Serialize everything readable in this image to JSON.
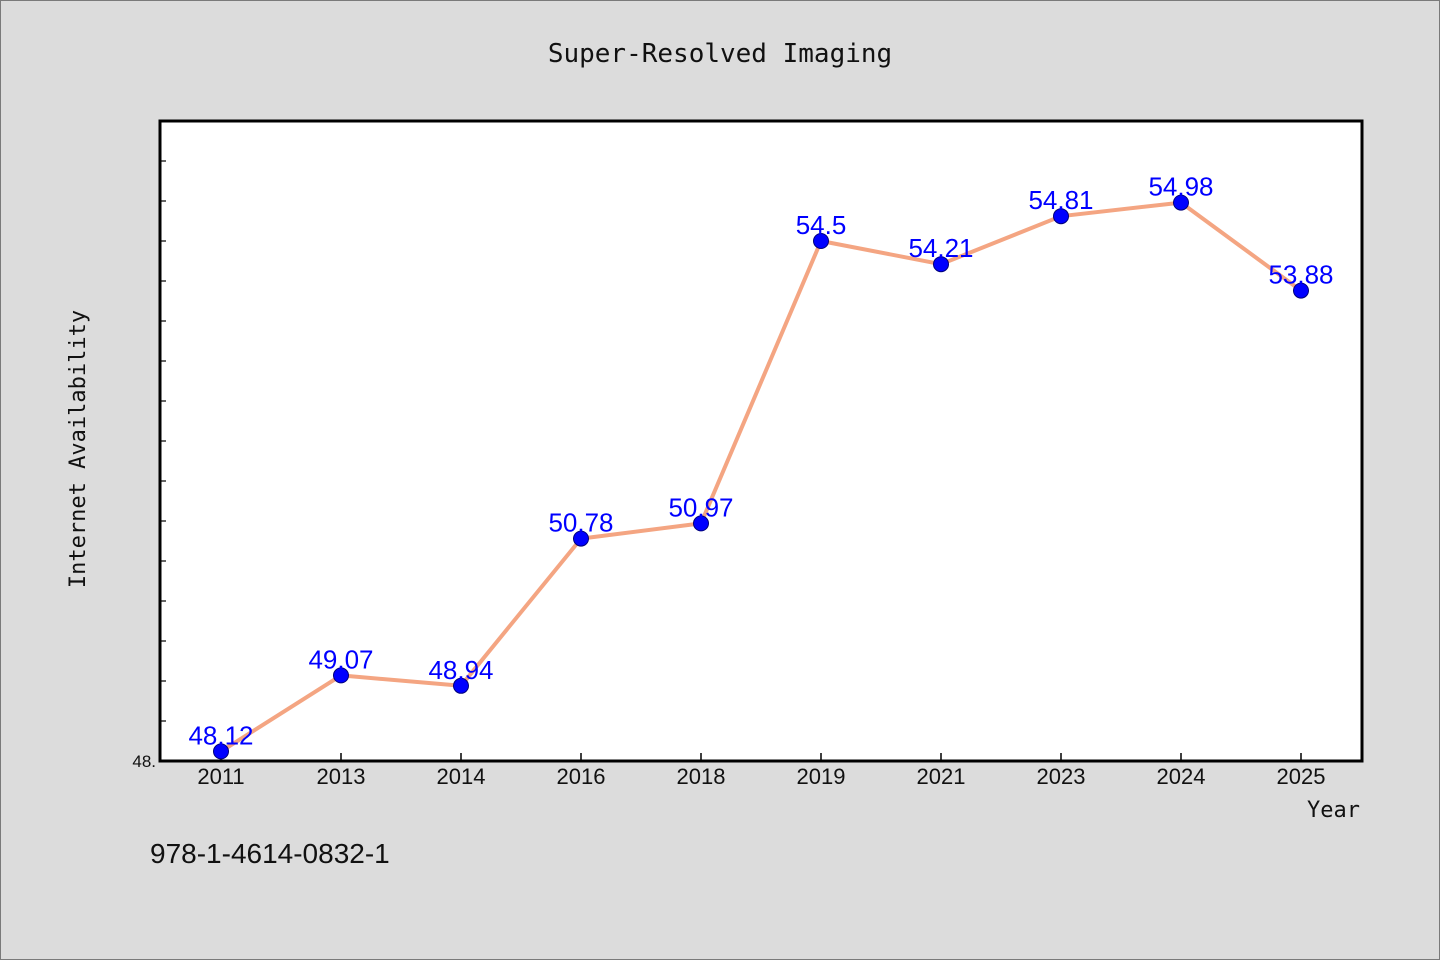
{
  "chart_data": {
    "type": "line",
    "title": "Super-Resolved Imaging",
    "xlabel": "Year",
    "ylabel": "Internet Availability",
    "categories": [
      "2011",
      "2013",
      "2014",
      "2016",
      "2018",
      "2019",
      "2021",
      "2023",
      "2024",
      "2025"
    ],
    "series": [
      {
        "values": [
          48.12,
          49.07,
          48.94,
          50.78,
          50.97,
          54.5,
          54.21,
          54.81,
          54.98,
          53.88
        ],
        "data_labels": [
          "48.12",
          "49.07",
          "48.94",
          "50.78",
          "50.97",
          "54.5",
          "54.21",
          "54.81",
          "54.98",
          "53.88"
        ],
        "line_color": "#f4a582",
        "marker_color": "#0000ff"
      }
    ],
    "ylim": [
      48.0,
      56.0
    ],
    "y_tick_labels": [
      "48."
    ],
    "grid": false,
    "legend": "none"
  },
  "caption": "978-1-4614-0832-1",
  "colors": {
    "background": "#dcdcdc",
    "plot_area": "#ffffff",
    "line": "#f4a582",
    "marker": "#0000ff",
    "data_label": "#0000ff"
  }
}
